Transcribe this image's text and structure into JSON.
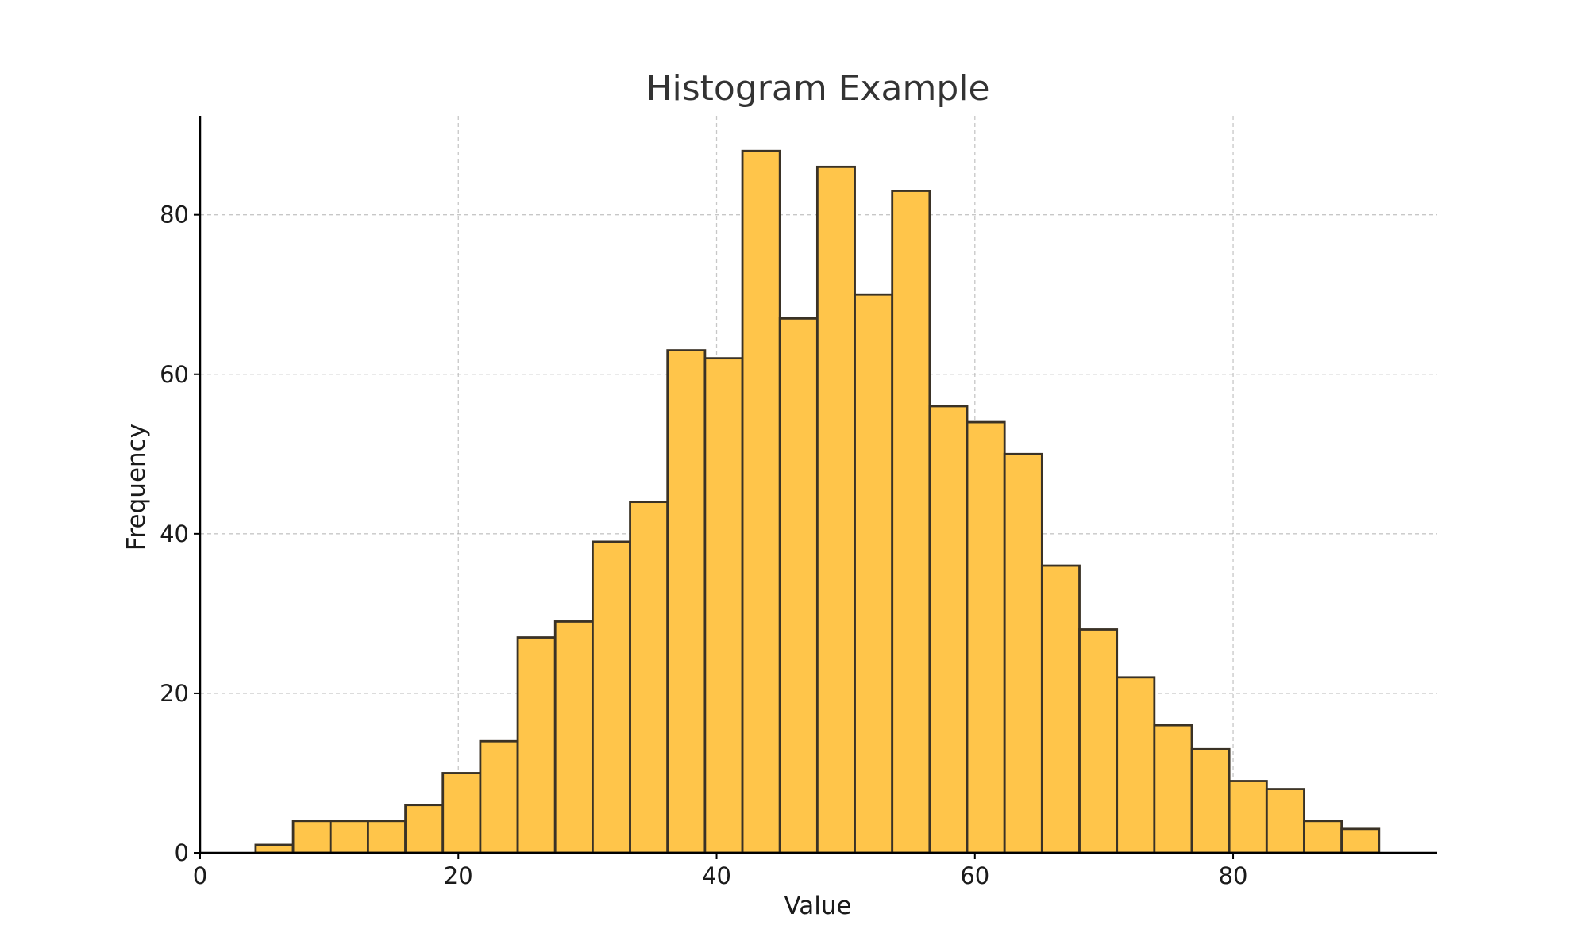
{
  "chart_data": {
    "type": "bar",
    "title": "Histogram Example",
    "xlabel": "Value",
    "ylabel": "Frequency",
    "xlim": [
      0,
      95.8
    ],
    "ylim": [
      0,
      92.4
    ],
    "x_ticks": [
      0,
      20,
      40,
      60,
      80
    ],
    "y_ticks": [
      0,
      20,
      40,
      60,
      80
    ],
    "grid": true,
    "bin_start": 4.3,
    "bin_width": 2.9,
    "values": [
      1,
      4,
      4,
      4,
      6,
      10,
      14,
      27,
      29,
      39,
      44,
      63,
      62,
      88,
      67,
      86,
      70,
      83,
      56,
      54,
      50,
      36,
      28,
      22,
      16,
      13,
      9,
      8,
      4,
      3
    ],
    "colors": {
      "bar_fill": "#FFC54A",
      "bar_edge": "#3a3226"
    }
  }
}
